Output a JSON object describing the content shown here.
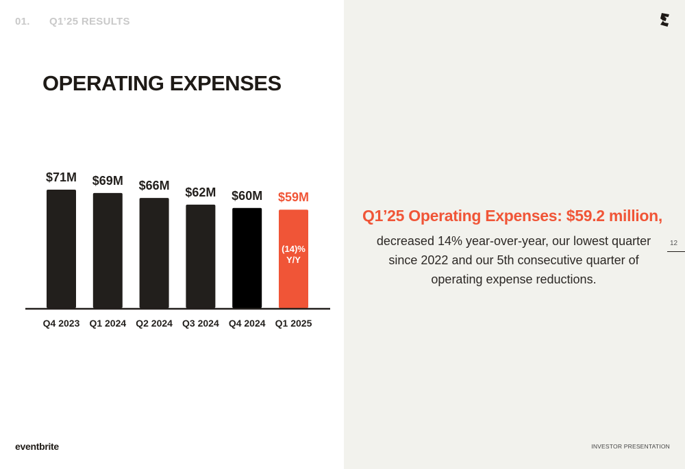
{
  "header": {
    "section_number": "01.",
    "section_title": "Q1’25 RESULTS"
  },
  "page_title": "OPERATING EXPENSES",
  "chart_data": {
    "type": "bar",
    "categories": [
      "Q4 2023",
      "Q1 2024",
      "Q2 2024",
      "Q3 2024",
      "Q4 2024",
      "Q1 2025"
    ],
    "values": [
      71,
      69,
      66,
      62,
      60,
      59
    ],
    "value_labels": [
      "$71M",
      "$69M",
      "$66M",
      "$62M",
      "$60M",
      "$59M"
    ],
    "highlight_index": 5,
    "highlight_annotation": [
      "(14)%",
      "Y/Y"
    ],
    "colors": {
      "bars": [
        "#221f1c",
        "#221f1c",
        "#221f1c",
        "#221f1c",
        "#000000",
        "#f05537"
      ],
      "label_default": "#221f1c",
      "label_highlight": "#f05537",
      "annotation_text": "#ffffff",
      "axis": "#221f1c"
    },
    "ylim": [
      0,
      71
    ],
    "grid": false
  },
  "callout": {
    "headline": "Q1’25 Operating Expenses: $59.2 million,",
    "body": "decreased 14% year-over-year, our lowest quarter since 2022 and our 5th consecutive quarter of operating expense reductions."
  },
  "brand": {
    "logo_text": "eventbrite",
    "mark_icon": "eventbrite-e-icon",
    "accent_color": "#f05537"
  },
  "footer": {
    "page_number": "12",
    "label": "INVESTOR PRESENTATION"
  }
}
